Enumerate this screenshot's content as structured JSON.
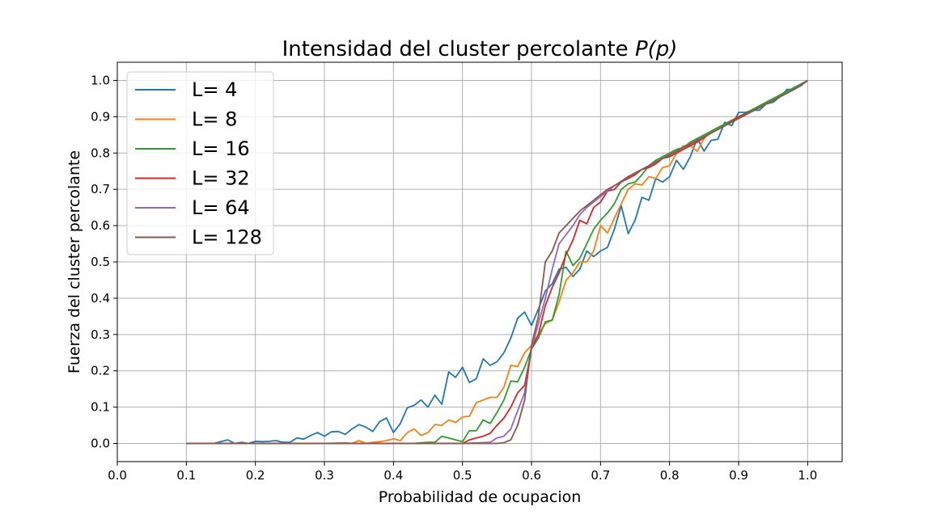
{
  "chart_data": {
    "type": "line",
    "title": "Intensidad del cluster percolante ",
    "title_math": "P(p)",
    "xlabel": "Probabilidad de ocupacion",
    "ylabel": "Fuerza del cluster percolante",
    "xlim": [
      0.0,
      1.05
    ],
    "ylim": [
      -0.05,
      1.05
    ],
    "xticks": [
      "0.0",
      "0.1",
      "0.2",
      "0.3",
      "0.4",
      "0.5",
      "0.6",
      "0.7",
      "0.8",
      "0.9",
      "1.0"
    ],
    "yticks": [
      "0.0",
      "0.1",
      "0.2",
      "0.3",
      "0.4",
      "0.5",
      "0.6",
      "0.7",
      "0.8",
      "0.9",
      "1.0"
    ],
    "grid": true,
    "legend_position": "upper-left",
    "series": [
      {
        "name": "L= 4",
        "color": "#1f77b4",
        "x": [
          0.1,
          0.12,
          0.14,
          0.15,
          0.16,
          0.17,
          0.18,
          0.19,
          0.2,
          0.21,
          0.22,
          0.23,
          0.24,
          0.25,
          0.26,
          0.27,
          0.28,
          0.29,
          0.3,
          0.31,
          0.32,
          0.33,
          0.34,
          0.35,
          0.36,
          0.37,
          0.38,
          0.39,
          0.4,
          0.41,
          0.42,
          0.43,
          0.44,
          0.45,
          0.46,
          0.47,
          0.48,
          0.49,
          0.5,
          0.51,
          0.52,
          0.53,
          0.54,
          0.55,
          0.56,
          0.57,
          0.58,
          0.59,
          0.6,
          0.61,
          0.62,
          0.63,
          0.64,
          0.65,
          0.66,
          0.67,
          0.68,
          0.69,
          0.7,
          0.71,
          0.72,
          0.73,
          0.74,
          0.75,
          0.76,
          0.77,
          0.78,
          0.79,
          0.8,
          0.81,
          0.82,
          0.83,
          0.84,
          0.85,
          0.86,
          0.87,
          0.88,
          0.89,
          0.9,
          0.91,
          0.92,
          0.93,
          0.94,
          0.95,
          0.96,
          0.97,
          0.98,
          0.99,
          1.0
        ],
        "y": [
          0.0,
          0.0,
          0.0,
          0.005,
          0.01,
          0.0,
          0.003,
          0.0,
          0.006,
          0.005,
          0.006,
          0.008,
          0.003,
          0.003,
          0.015,
          0.012,
          0.022,
          0.03,
          0.02,
          0.032,
          0.033,
          0.025,
          0.04,
          0.052,
          0.045,
          0.033,
          0.06,
          0.07,
          0.03,
          0.055,
          0.098,
          0.105,
          0.12,
          0.1,
          0.133,
          0.108,
          0.197,
          0.182,
          0.21,
          0.168,
          0.178,
          0.233,
          0.215,
          0.225,
          0.25,
          0.29,
          0.345,
          0.362,
          0.325,
          0.37,
          0.42,
          0.44,
          0.48,
          0.485,
          0.46,
          0.48,
          0.53,
          0.515,
          0.53,
          0.54,
          0.59,
          0.655,
          0.578,
          0.615,
          0.678,
          0.67,
          0.73,
          0.72,
          0.735,
          0.78,
          0.755,
          0.79,
          0.84,
          0.805,
          0.835,
          0.838,
          0.885,
          0.875,
          0.912,
          0.912,
          0.918,
          0.918,
          0.935,
          0.94,
          0.955,
          0.975,
          0.975,
          0.985,
          1.0
        ]
      },
      {
        "name": "L= 8",
        "color": "#ff7f0e",
        "x": [
          0.1,
          0.15,
          0.2,
          0.25,
          0.3,
          0.33,
          0.34,
          0.35,
          0.36,
          0.37,
          0.38,
          0.39,
          0.4,
          0.41,
          0.42,
          0.43,
          0.44,
          0.45,
          0.46,
          0.47,
          0.48,
          0.49,
          0.5,
          0.51,
          0.52,
          0.53,
          0.54,
          0.55,
          0.56,
          0.57,
          0.58,
          0.59,
          0.6,
          0.61,
          0.62,
          0.63,
          0.64,
          0.65,
          0.66,
          0.67,
          0.68,
          0.69,
          0.7,
          0.71,
          0.72,
          0.73,
          0.74,
          0.75,
          0.76,
          0.77,
          0.78,
          0.79,
          0.8,
          0.81,
          0.82,
          0.83,
          0.84,
          0.85,
          0.86,
          0.88,
          0.9,
          0.92,
          0.94,
          0.96,
          0.98,
          1.0
        ],
        "y": [
          0.0,
          0.0,
          0.0,
          0.0,
          0.0,
          0.002,
          0.0,
          0.008,
          0.0,
          0.003,
          0.005,
          0.008,
          0.013,
          0.008,
          0.03,
          0.04,
          0.022,
          0.03,
          0.052,
          0.05,
          0.065,
          0.058,
          0.073,
          0.075,
          0.112,
          0.12,
          0.127,
          0.127,
          0.155,
          0.215,
          0.212,
          0.25,
          0.27,
          0.3,
          0.33,
          0.34,
          0.39,
          0.45,
          0.47,
          0.5,
          0.5,
          0.53,
          0.6,
          0.58,
          0.62,
          0.66,
          0.7,
          0.715,
          0.712,
          0.735,
          0.73,
          0.76,
          0.765,
          0.8,
          0.82,
          0.82,
          0.805,
          0.84,
          0.86,
          0.88,
          0.9,
          0.915,
          0.935,
          0.955,
          0.975,
          1.0
        ]
      },
      {
        "name": "L= 16",
        "color": "#2ca02c",
        "x": [
          0.1,
          0.2,
          0.3,
          0.4,
          0.43,
          0.44,
          0.45,
          0.46,
          0.47,
          0.48,
          0.49,
          0.5,
          0.51,
          0.52,
          0.53,
          0.54,
          0.55,
          0.56,
          0.57,
          0.58,
          0.59,
          0.6,
          0.61,
          0.62,
          0.63,
          0.64,
          0.65,
          0.66,
          0.67,
          0.68,
          0.69,
          0.7,
          0.71,
          0.72,
          0.73,
          0.74,
          0.75,
          0.76,
          0.77,
          0.78,
          0.79,
          0.8,
          0.81,
          0.82,
          0.83,
          0.84,
          0.86,
          0.88,
          0.9,
          0.92,
          0.94,
          0.96,
          0.98,
          1.0
        ],
        "y": [
          0.0,
          0.0,
          0.0,
          0.0,
          0.0,
          0.002,
          0.003,
          0.003,
          0.02,
          0.015,
          0.01,
          0.005,
          0.035,
          0.035,
          0.065,
          0.055,
          0.085,
          0.12,
          0.172,
          0.17,
          0.21,
          0.26,
          0.29,
          0.335,
          0.34,
          0.41,
          0.53,
          0.49,
          0.51,
          0.55,
          0.59,
          0.615,
          0.635,
          0.66,
          0.7,
          0.715,
          0.72,
          0.74,
          0.765,
          0.78,
          0.79,
          0.8,
          0.81,
          0.815,
          0.83,
          0.84,
          0.86,
          0.88,
          0.9,
          0.92,
          0.94,
          0.96,
          0.98,
          1.0
        ]
      },
      {
        "name": "L= 32",
        "color": "#d62728",
        "x": [
          0.1,
          0.2,
          0.3,
          0.4,
          0.48,
          0.49,
          0.5,
          0.51,
          0.52,
          0.53,
          0.54,
          0.55,
          0.56,
          0.57,
          0.58,
          0.59,
          0.6,
          0.61,
          0.62,
          0.63,
          0.64,
          0.65,
          0.66,
          0.67,
          0.68,
          0.69,
          0.7,
          0.71,
          0.72,
          0.73,
          0.74,
          0.75,
          0.76,
          0.77,
          0.78,
          0.79,
          0.8,
          0.82,
          0.84,
          0.86,
          0.88,
          0.9,
          0.92,
          0.94,
          0.96,
          0.98,
          1.0
        ],
        "y": [
          0.0,
          0.0,
          0.0,
          0.0,
          0.0,
          0.0,
          0.0,
          0.01,
          0.015,
          0.02,
          0.028,
          0.05,
          0.07,
          0.1,
          0.14,
          0.16,
          0.26,
          0.3,
          0.38,
          0.43,
          0.47,
          0.52,
          0.56,
          0.615,
          0.605,
          0.65,
          0.665,
          0.695,
          0.7,
          0.72,
          0.73,
          0.74,
          0.755,
          0.76,
          0.77,
          0.785,
          0.79,
          0.81,
          0.83,
          0.855,
          0.875,
          0.9,
          0.915,
          0.935,
          0.955,
          0.975,
          1.0
        ]
      },
      {
        "name": "L= 64",
        "color": "#9467bd",
        "x": [
          0.1,
          0.2,
          0.3,
          0.4,
          0.5,
          0.54,
          0.55,
          0.56,
          0.57,
          0.58,
          0.59,
          0.6,
          0.61,
          0.62,
          0.63,
          0.64,
          0.65,
          0.66,
          0.67,
          0.68,
          0.69,
          0.7,
          0.71,
          0.72,
          0.73,
          0.74,
          0.75,
          0.76,
          0.78,
          0.8,
          0.82,
          0.84,
          0.86,
          0.88,
          0.9,
          0.92,
          0.94,
          0.96,
          0.98,
          1.0
        ],
        "y": [
          0.0,
          0.0,
          0.0,
          0.0,
          0.0,
          0.003,
          0.015,
          0.02,
          0.04,
          0.09,
          0.14,
          0.26,
          0.33,
          0.4,
          0.48,
          0.55,
          0.575,
          0.6,
          0.63,
          0.65,
          0.665,
          0.68,
          0.695,
          0.71,
          0.72,
          0.735,
          0.745,
          0.755,
          0.775,
          0.795,
          0.815,
          0.835,
          0.855,
          0.875,
          0.895,
          0.915,
          0.935,
          0.955,
          0.975,
          1.0
        ]
      },
      {
        "name": "L= 128",
        "color": "#8c564b",
        "x": [
          0.1,
          0.2,
          0.3,
          0.4,
          0.5,
          0.55,
          0.56,
          0.57,
          0.58,
          0.59,
          0.6,
          0.61,
          0.62,
          0.63,
          0.64,
          0.65,
          0.66,
          0.67,
          0.68,
          0.69,
          0.7,
          0.71,
          0.72,
          0.73,
          0.74,
          0.75,
          0.76,
          0.78,
          0.8,
          0.82,
          0.84,
          0.86,
          0.88,
          0.9,
          0.92,
          0.94,
          0.96,
          0.98,
          1.0
        ],
        "y": [
          0.0,
          0.0,
          0.0,
          0.0,
          0.0,
          0.0,
          0.002,
          0.01,
          0.05,
          0.12,
          0.27,
          0.35,
          0.5,
          0.53,
          0.58,
          0.6,
          0.62,
          0.64,
          0.655,
          0.67,
          0.685,
          0.7,
          0.71,
          0.722,
          0.735,
          0.745,
          0.755,
          0.775,
          0.795,
          0.815,
          0.835,
          0.855,
          0.875,
          0.895,
          0.915,
          0.935,
          0.955,
          0.975,
          1.0
        ]
      }
    ]
  }
}
